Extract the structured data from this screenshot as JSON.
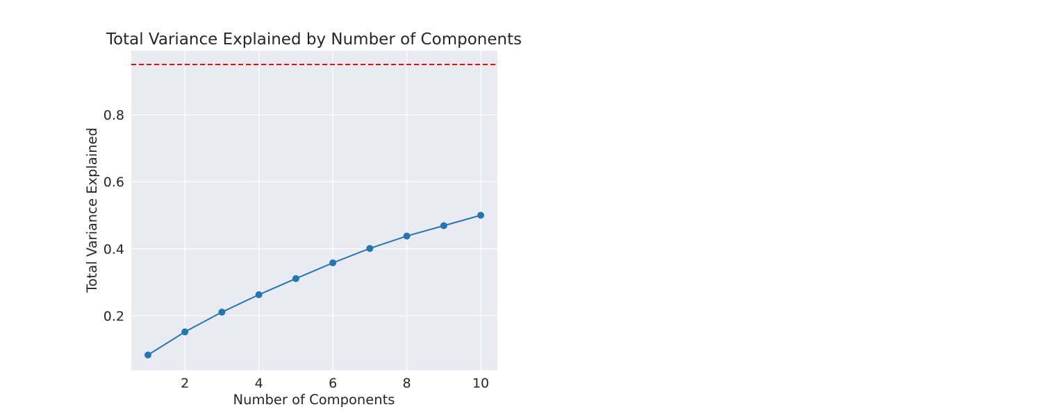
{
  "chart_data": {
    "type": "line",
    "title": "Total Variance Explained by Number of Components",
    "xlabel": "Number of Components",
    "ylabel": "Total Variance Explained",
    "x": [
      1,
      2,
      3,
      4,
      5,
      6,
      7,
      8,
      9,
      10
    ],
    "series": [
      {
        "values": [
          0.083,
          0.152,
          0.211,
          0.263,
          0.311,
          0.358,
          0.401,
          0.438,
          0.469,
          0.5
        ],
        "color": "#1f77b4",
        "marker": "circle"
      }
    ],
    "reference_line": {
      "y": 0.95,
      "color": "#ff0000",
      "style": "dashed"
    },
    "xlim": [
      0.55,
      10.45
    ],
    "ylim": [
      0.0375,
      0.9915
    ],
    "xticks": [
      2,
      4,
      6,
      8,
      10
    ],
    "xtick_labels": [
      "2",
      "4",
      "6",
      "8",
      "10"
    ],
    "yticks": [
      0.2,
      0.4,
      0.6,
      0.8
    ],
    "ytick_labels": [
      "0.2",
      "0.4",
      "0.6",
      "0.8"
    ],
    "grid": true,
    "plot_background": "#eaeaf2",
    "grid_color": "#ffffff"
  }
}
